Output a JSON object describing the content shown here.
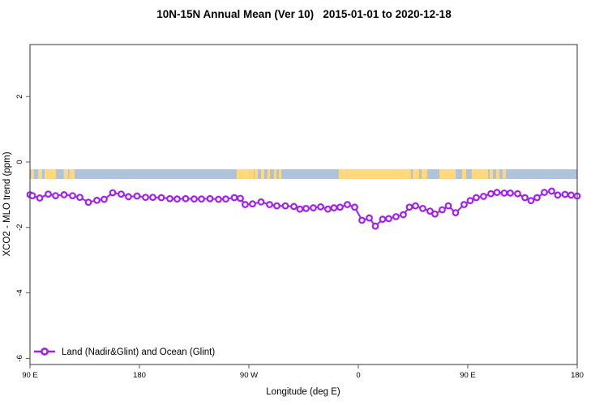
{
  "chart_data": {
    "type": "line",
    "title": "10N-15N Annual Mean (Ver 10)   2015-01-01 to 2020-12-18",
    "xlabel": "Longitude (deg E)",
    "ylabel": "XCO2 - MLO trend (ppm)",
    "x_axis": {
      "span_deg_from_left": 450,
      "ticks": [
        {
          "d": 0,
          "label": "90 E"
        },
        {
          "d": 90,
          "label": "180"
        },
        {
          "d": 180,
          "label": "90 W"
        },
        {
          "d": 270,
          "label": "0"
        },
        {
          "d": 360,
          "label": "90 E"
        },
        {
          "d": 450,
          "label": "180"
        }
      ]
    },
    "y_axis": {
      "ylim": [
        -6.2,
        3.6
      ],
      "ticks": [
        {
          "v": 2,
          "label": "2"
        },
        {
          "v": 0,
          "label": "0"
        },
        {
          "v": -2,
          "label": "-2"
        },
        {
          "v": -4,
          "label": "-4"
        },
        {
          "v": -6,
          "label": "-6"
        }
      ],
      "grid": false
    },
    "map_strip": {
      "ocean_color": "#AFC3DD",
      "land_color": "#FFD97C",
      "value_top": -0.22,
      "value_bottom": -0.52,
      "land_patches_deg": [
        [
          1,
          3.3
        ],
        [
          6.7,
          10
        ],
        [
          12,
          21.3
        ],
        [
          27.8,
          31.3
        ],
        [
          32.3,
          36.7
        ],
        [
          170,
          184
        ],
        [
          184.7,
          187.3
        ],
        [
          190,
          192.7
        ],
        [
          195.3,
          197.3
        ],
        [
          200.7,
          202.7
        ],
        [
          204.7,
          206.7
        ],
        [
          254,
          313.3
        ],
        [
          314.7,
          320
        ],
        [
          322,
          326.7
        ],
        [
          336.7,
          350
        ],
        [
          355.3,
          358.7
        ],
        [
          363.3,
          376.7
        ],
        [
          378,
          380.7
        ],
        [
          383.3,
          386
        ],
        [
          388.7,
          391.3
        ]
      ]
    },
    "legend_position": "bottom-left",
    "series": [
      {
        "name": "Land (Nadir&Glint) and Ocean (Glint)",
        "color": "#A020F0",
        "marker": "open-circle",
        "points": [
          [
            0,
            -1.0
          ],
          [
            2,
            -1.03
          ],
          [
            8,
            -1.1
          ],
          [
            15,
            -0.98
          ],
          [
            21,
            -1.03
          ],
          [
            28,
            -1.0
          ],
          [
            35,
            -1.03
          ],
          [
            41,
            -1.08
          ],
          [
            48,
            -1.23
          ],
          [
            55,
            -1.17
          ],
          [
            61,
            -1.14
          ],
          [
            68,
            -0.94
          ],
          [
            75,
            -0.98
          ],
          [
            81,
            -1.06
          ],
          [
            88,
            -1.04
          ],
          [
            95,
            -1.08
          ],
          [
            101,
            -1.08
          ],
          [
            108,
            -1.09
          ],
          [
            115,
            -1.12
          ],
          [
            121,
            -1.13
          ],
          [
            128,
            -1.12
          ],
          [
            135,
            -1.13
          ],
          [
            141,
            -1.13
          ],
          [
            148,
            -1.12
          ],
          [
            155,
            -1.14
          ],
          [
            161,
            -1.13
          ],
          [
            168,
            -1.09
          ],
          [
            173,
            -1.11
          ],
          [
            177,
            -1.3
          ],
          [
            183,
            -1.28
          ],
          [
            190,
            -1.22
          ],
          [
            197,
            -1.3
          ],
          [
            203,
            -1.34
          ],
          [
            210,
            -1.34
          ],
          [
            217,
            -1.36
          ],
          [
            222,
            -1.44
          ],
          [
            227,
            -1.42
          ],
          [
            233,
            -1.4
          ],
          [
            239,
            -1.37
          ],
          [
            245,
            -1.44
          ],
          [
            250,
            -1.4
          ],
          [
            255,
            -1.38
          ],
          [
            261,
            -1.3
          ],
          [
            267,
            -1.38
          ],
          [
            273,
            -1.78
          ],
          [
            279,
            -1.71
          ],
          [
            284,
            -1.96
          ],
          [
            290,
            -1.75
          ],
          [
            295,
            -1.73
          ],
          [
            301,
            -1.67
          ],
          [
            307,
            -1.61
          ],
          [
            312,
            -1.38
          ],
          [
            317,
            -1.34
          ],
          [
            323,
            -1.42
          ],
          [
            329,
            -1.5
          ],
          [
            333,
            -1.59
          ],
          [
            339,
            -1.46
          ],
          [
            344,
            -1.34
          ],
          [
            350,
            -1.55
          ],
          [
            357,
            -1.3
          ],
          [
            362,
            -1.18
          ],
          [
            367,
            -1.09
          ],
          [
            373,
            -1.05
          ],
          [
            379,
            -0.97
          ],
          [
            384,
            -0.93
          ],
          [
            390,
            -0.95
          ],
          [
            395,
            -0.95
          ],
          [
            401,
            -0.97
          ],
          [
            407,
            -1.09
          ],
          [
            412,
            -1.18
          ],
          [
            417,
            -1.09
          ],
          [
            423,
            -0.93
          ],
          [
            429,
            -0.89
          ],
          [
            434,
            -1.01
          ],
          [
            440,
            -0.99
          ],
          [
            445,
            -1.01
          ],
          [
            450,
            -1.04
          ]
        ]
      }
    ],
    "frame_color": "#555555"
  }
}
